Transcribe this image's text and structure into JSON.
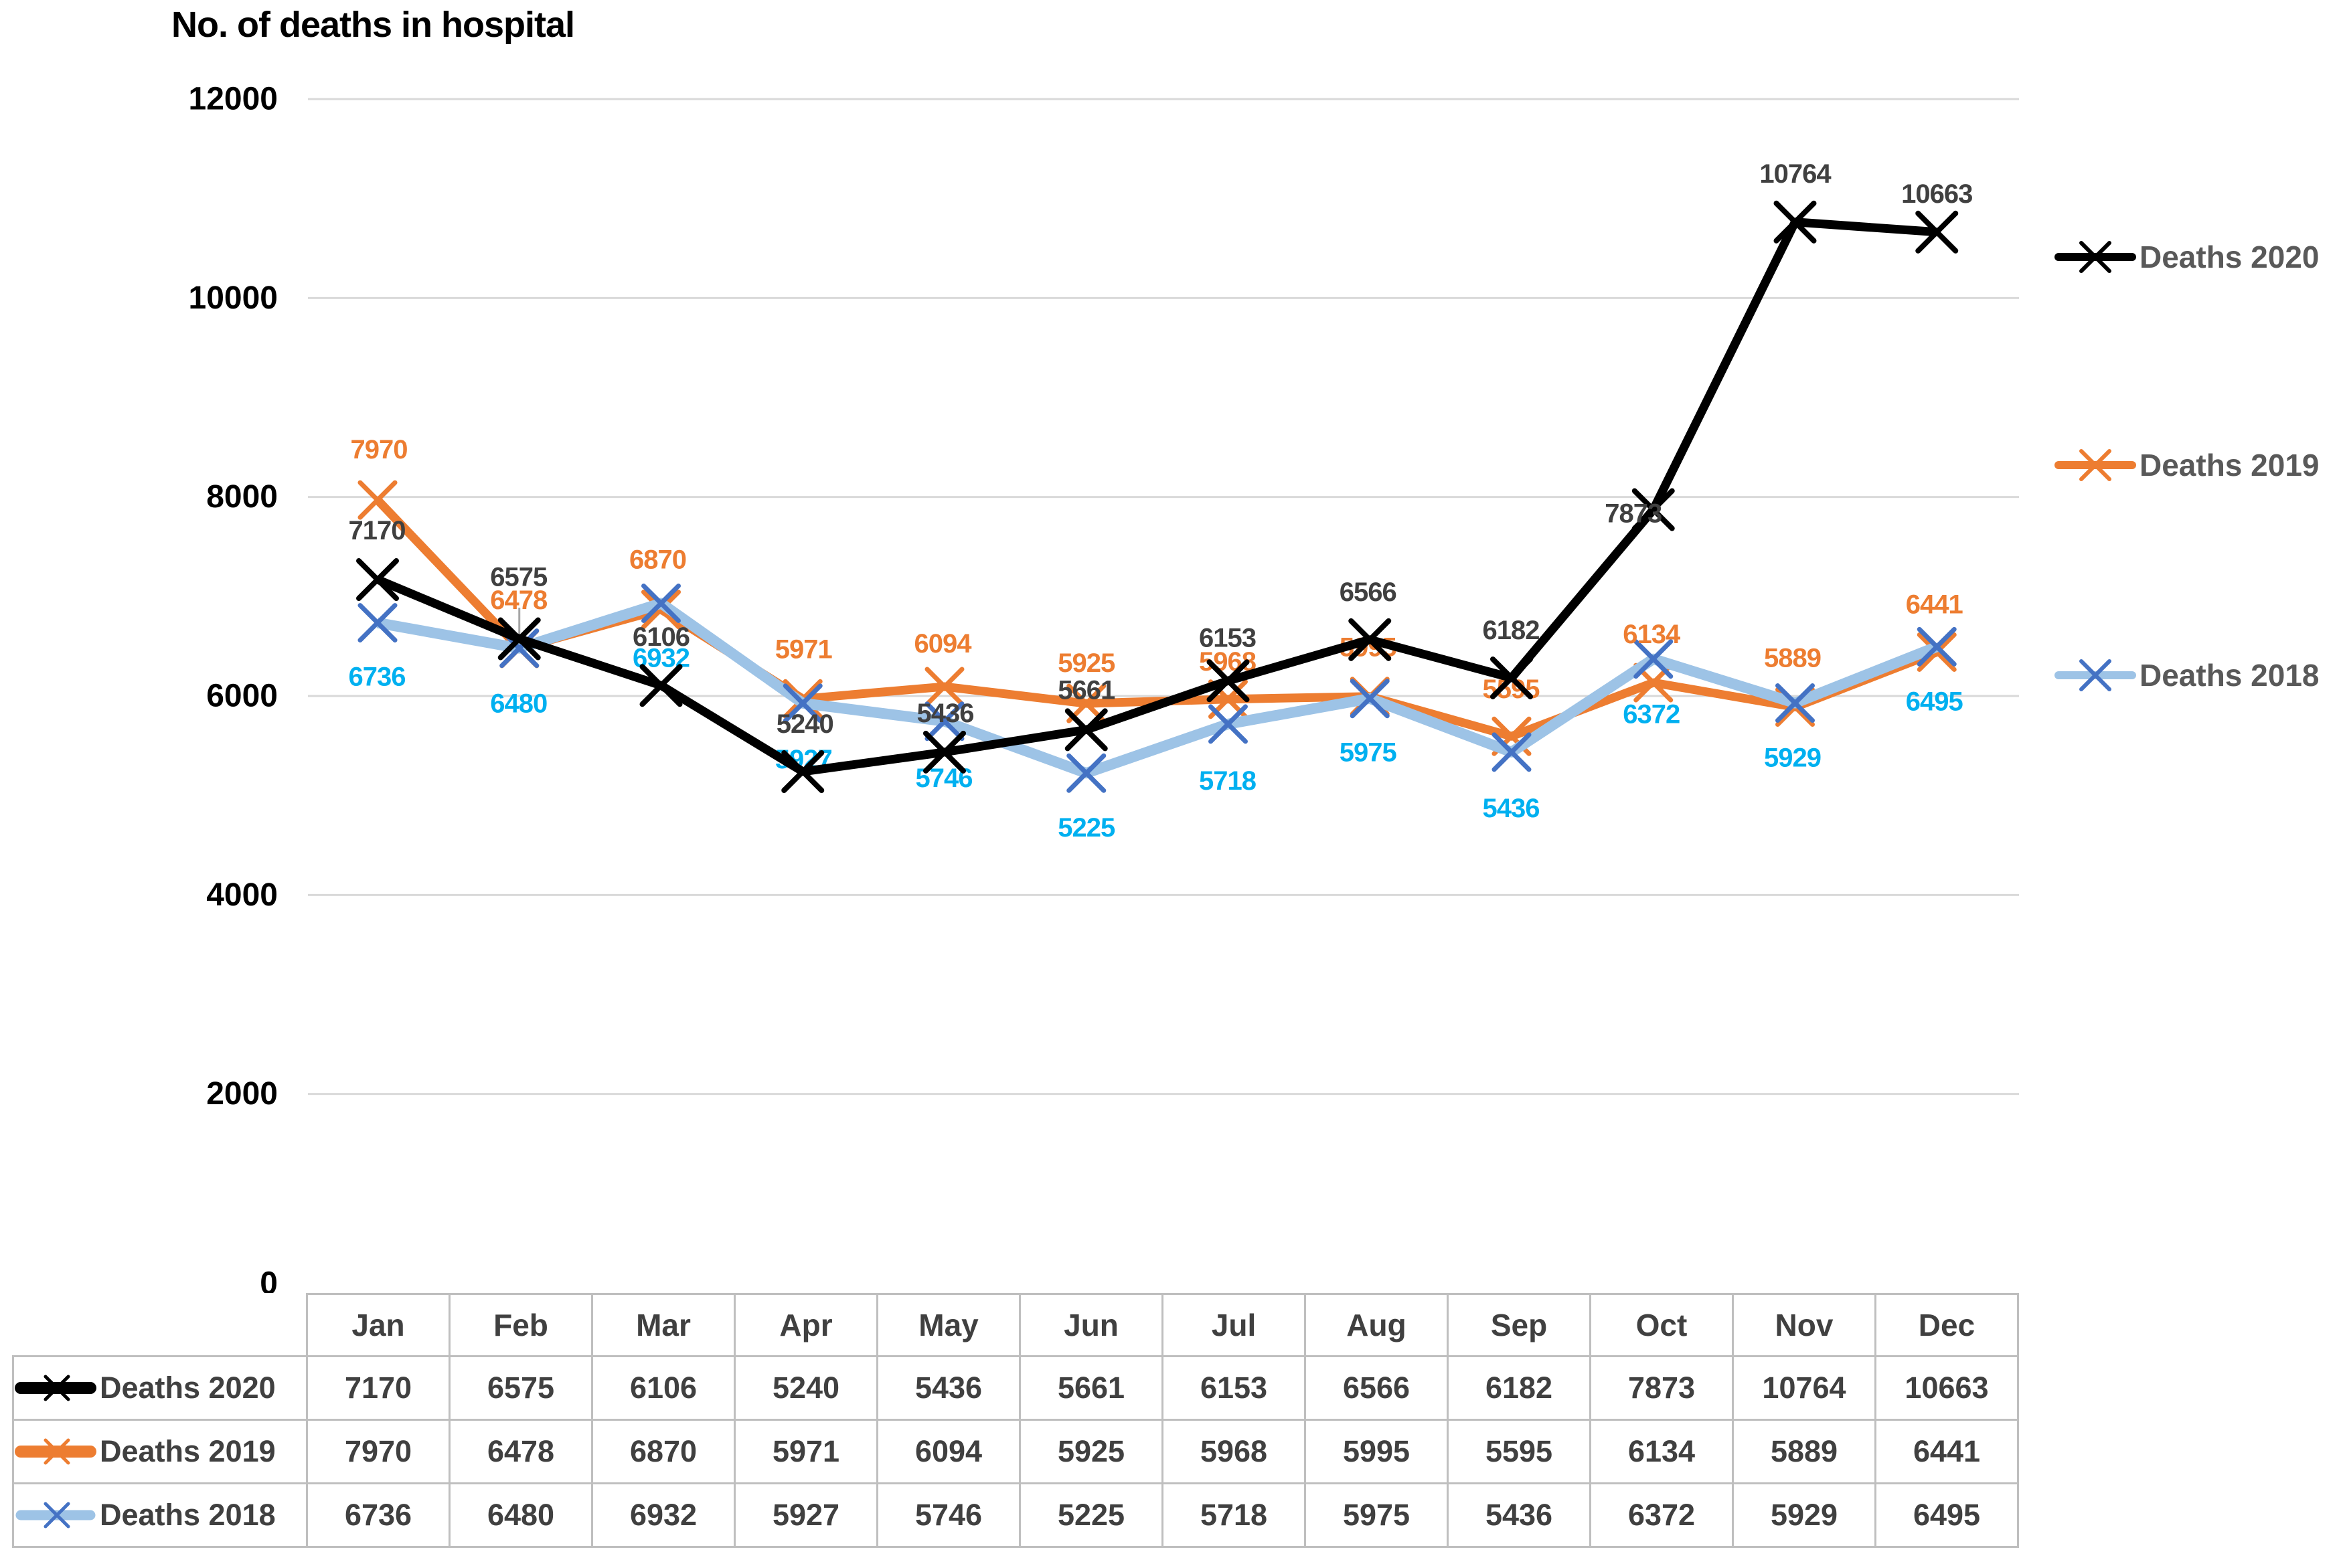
{
  "title": "No. of deaths in hospital",
  "chart_data": {
    "type": "line",
    "categories": [
      "Jan",
      "Feb",
      "Mar",
      "Apr",
      "May",
      "Jun",
      "Jul",
      "Aug",
      "Sep",
      "Oct",
      "Nov",
      "Dec"
    ],
    "series": [
      {
        "name": "Deaths 2020",
        "color": "#000000",
        "label_color": "#404040",
        "values": [
          7170,
          6575,
          6106,
          5240,
          5436,
          5661,
          6153,
          6566,
          6182,
          7873,
          10764,
          10663
        ]
      },
      {
        "name": "Deaths 2019",
        "color": "#ED7D31",
        "label_color": "#ED7D31",
        "values": [
          7970,
          6478,
          6870,
          5971,
          6094,
          5925,
          5968,
          5995,
          5595,
          6134,
          5889,
          6441
        ]
      },
      {
        "name": "Deaths 2018",
        "color": "#9DC3E6",
        "marker_color": "#4472C4",
        "label_color": "#00B0F0",
        "values": [
          6736,
          6480,
          6932,
          5927,
          5746,
          5225,
          5718,
          5975,
          5436,
          6372,
          5929,
          6495
        ]
      }
    ],
    "ylim": [
      0,
      12000
    ],
    "yticks": [
      0,
      2000,
      4000,
      6000,
      8000,
      10000,
      12000
    ],
    "grid": true,
    "legend_position": "right",
    "marker": "x",
    "data_labels": true
  },
  "legend": {
    "items": [
      "Deaths 2020",
      "Deaths 2019",
      "Deaths 2018"
    ]
  },
  "table": {
    "corner_label": "",
    "columns": [
      "Jan",
      "Feb",
      "Mar",
      "Apr",
      "May",
      "Jun",
      "Jul",
      "Aug",
      "Sep",
      "Oct",
      "Nov",
      "Dec"
    ],
    "rows": [
      {
        "label": "Deaths 2020",
        "values": [
          7170,
          6575,
          6106,
          5240,
          5436,
          5661,
          6153,
          6566,
          6182,
          7873,
          10764,
          10663
        ]
      },
      {
        "label": "Deaths 2019",
        "values": [
          7970,
          6478,
          6870,
          5971,
          6094,
          5925,
          5968,
          5995,
          5595,
          6134,
          5889,
          6441
        ]
      },
      {
        "label": "Deaths 2018",
        "values": [
          6736,
          6480,
          6932,
          5927,
          5746,
          5225,
          5718,
          5975,
          5436,
          6372,
          5929,
          6495
        ]
      }
    ]
  },
  "colors": {
    "gridline": "#D9D9D9",
    "axis_text": "#000000",
    "legend_text": "#595959",
    "table_border": "#BFBFBF",
    "table_text": "#404040",
    "leader_line": "#A6A6A6",
    "background": "#FFFFFF"
  }
}
